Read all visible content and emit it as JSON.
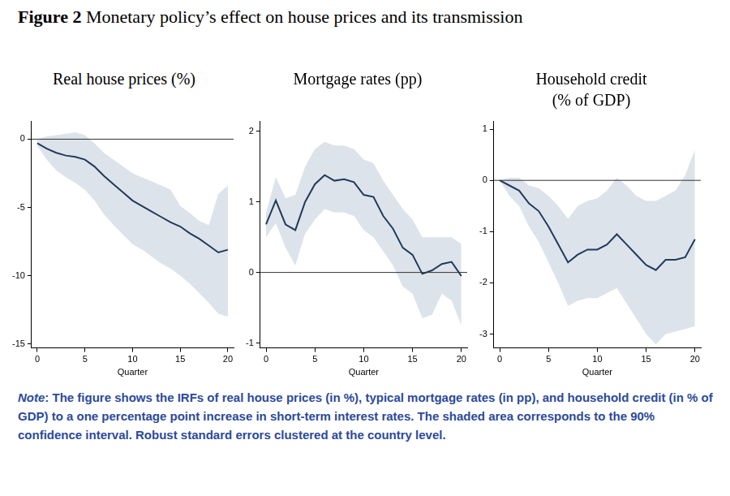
{
  "figure_label": "Figure 2",
  "title": "Monetary policy’s effect on house prices and its transmission",
  "note_label": "Note",
  "note": ": The figure shows the IRFs of real house prices (in %), typical mortgage rates (in pp), and household credit (in % of GDP) to a one percentage point increase in short-term interest rates. The shaded area corresponds to the 90% confidence interval. Robust standard errors clustered at the country level.",
  "chart_data": [
    {
      "type": "line",
      "title": [
        "Real house prices (%)"
      ],
      "xlabel": "Quarter",
      "color": "#1f3b5c",
      "grid": false,
      "reference_line": 0,
      "x": [
        0,
        1,
        2,
        3,
        4,
        5,
        6,
        7,
        8,
        9,
        10,
        11,
        12,
        13,
        14,
        15,
        16,
        17,
        18,
        19,
        20
      ],
      "values": [
        -0.3,
        -0.7,
        -1.0,
        -1.2,
        -1.3,
        -1.5,
        -2.0,
        -2.7,
        -3.3,
        -3.9,
        -4.5,
        -4.9,
        -5.3,
        -5.7,
        -6.1,
        -6.4,
        -6.9,
        -7.3,
        -7.8,
        -8.3,
        -8.1
      ],
      "upper": [
        0,
        0.2,
        0.3,
        0.4,
        0.5,
        0.3,
        -0.3,
        -1.0,
        -1.5,
        -2.0,
        -2.5,
        -2.8,
        -3.1,
        -3.4,
        -3.7,
        -4.9,
        -5.4,
        -6.0,
        -6.3,
        -4.0,
        -3.4
      ],
      "lower": [
        -0.5,
        -1.5,
        -2.3,
        -2.8,
        -3.2,
        -3.7,
        -4.5,
        -5.5,
        -6.3,
        -7.0,
        -7.7,
        -8.1,
        -8.6,
        -9.1,
        -9.5,
        -10.0,
        -10.6,
        -11.3,
        -12.0,
        -12.8,
        -13.0
      ],
      "xlim": [
        -0.6,
        20.6
      ],
      "xticks": [
        0,
        5,
        10,
        15,
        20
      ],
      "ylim": [
        -15.3,
        1.3
      ],
      "yticks": [
        -15,
        -10,
        -5,
        0
      ]
    },
    {
      "type": "line",
      "title": [
        "Mortgage rates (pp)"
      ],
      "xlabel": "Quarter",
      "color": "#1f3b5c",
      "grid": false,
      "reference_line": 0,
      "x": [
        0,
        1,
        2,
        3,
        4,
        5,
        6,
        7,
        8,
        9,
        10,
        11,
        12,
        13,
        14,
        15,
        16,
        17,
        18,
        19,
        20
      ],
      "values": [
        0.68,
        1.02,
        0.68,
        0.6,
        1.0,
        1.25,
        1.38,
        1.3,
        1.32,
        1.28,
        1.1,
        1.07,
        0.8,
        0.62,
        0.35,
        0.25,
        -0.02,
        0.03,
        0.12,
        0.15,
        -0.05
      ],
      "upper": [
        0.85,
        1.35,
        1.05,
        1.1,
        1.5,
        1.75,
        1.85,
        1.8,
        1.8,
        1.75,
        1.6,
        1.55,
        1.3,
        1.1,
        0.9,
        0.75,
        0.5,
        0.5,
        0.5,
        0.5,
        0.4
      ],
      "lower": [
        0.5,
        0.7,
        0.35,
        0.1,
        0.55,
        0.75,
        0.9,
        0.85,
        0.85,
        0.8,
        0.6,
        0.5,
        0.3,
        0.1,
        -0.2,
        -0.3,
        -0.65,
        -0.6,
        -0.3,
        -0.4,
        -0.75
      ],
      "xlim": [
        -0.6,
        20.6
      ],
      "xticks": [
        0,
        5,
        10,
        15,
        20
      ],
      "ylim": [
        -1.07,
        2.14
      ],
      "yticks": [
        -1,
        0,
        1,
        2
      ]
    },
    {
      "type": "line",
      "title": [
        "Household credit",
        "(% of GDP)"
      ],
      "xlabel": "Quarter",
      "color": "#1f3b5c",
      "grid": false,
      "reference_line": 0,
      "x": [
        0,
        1,
        2,
        3,
        4,
        5,
        6,
        7,
        8,
        9,
        10,
        11,
        12,
        13,
        14,
        15,
        16,
        17,
        18,
        19,
        20
      ],
      "values": [
        0,
        -0.1,
        -0.2,
        -0.45,
        -0.6,
        -0.9,
        -1.25,
        -1.6,
        -1.45,
        -1.35,
        -1.35,
        -1.25,
        -1.05,
        -1.25,
        -1.45,
        -1.65,
        -1.75,
        -1.55,
        -1.55,
        -1.5,
        -1.15
      ],
      "upper": [
        0,
        0.05,
        0.05,
        -0.1,
        -0.15,
        -0.3,
        -0.5,
        -0.75,
        -0.5,
        -0.4,
        -0.35,
        -0.2,
        0.05,
        -0.1,
        -0.3,
        -0.4,
        -0.4,
        -0.3,
        -0.2,
        0.1,
        0.6
      ],
      "lower": [
        0,
        -0.3,
        -0.5,
        -0.9,
        -1.2,
        -1.6,
        -2.0,
        -2.45,
        -2.35,
        -2.3,
        -2.3,
        -2.2,
        -2.1,
        -2.4,
        -2.7,
        -3.0,
        -3.2,
        -3.0,
        -2.95,
        -2.9,
        -2.85
      ],
      "xlim": [
        -0.6,
        20.6
      ],
      "xticks": [
        0,
        5,
        10,
        15,
        20
      ],
      "ylim": [
        -3.27,
        1.15
      ],
      "yticks": [
        -3,
        -2,
        -1,
        0,
        1
      ]
    }
  ]
}
